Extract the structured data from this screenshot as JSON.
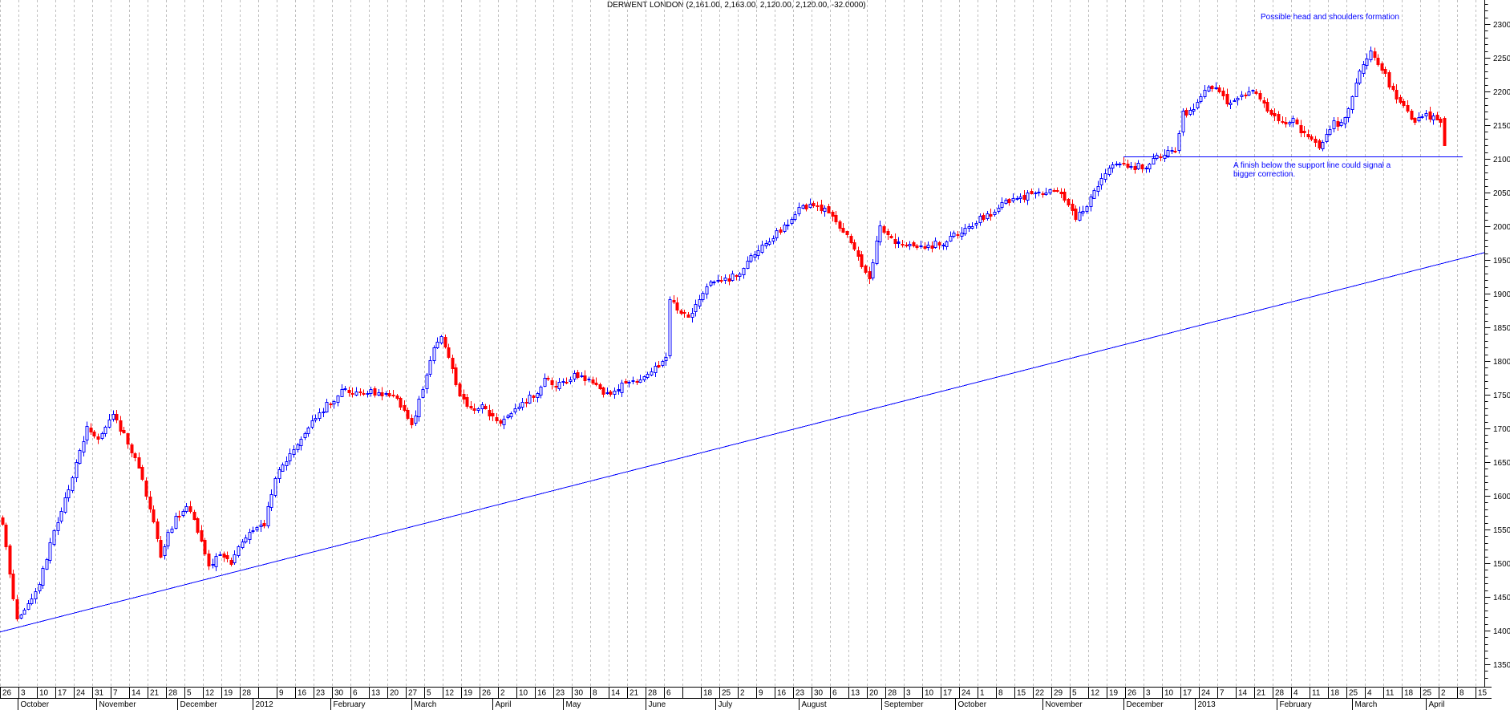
{
  "chart_data": {
    "type": "candlestick",
    "title": "DERWENT LONDON (2,161.00, 2,163.00, 2,120.00, 2,120.00, -32.0000)",
    "instrument": "DERWENT LONDON",
    "quote": {
      "open": "2,161.00",
      "high": "2,163.00",
      "low": "2,120.00",
      "close": "2,120.00",
      "change": "-32.0000"
    },
    "y_axis": {
      "side": "right",
      "minor_step": 10,
      "major_step": 50,
      "label_min": 1350,
      "label_max": 2300,
      "labels": [
        2300,
        2250,
        2200,
        2150,
        2100,
        2050,
        2000,
        1950,
        1900,
        1850,
        1800,
        1750,
        1700,
        1650,
        1600,
        1550,
        1500,
        1450,
        1400,
        1350
      ]
    },
    "x_axis": {
      "week_labels": [
        "26",
        "3",
        "10",
        "17",
        "24",
        "31",
        "7",
        "14",
        "21",
        "28",
        "5",
        "12",
        "19",
        "28",
        "",
        "9",
        "16",
        "23",
        "30",
        "6",
        "13",
        "20",
        "27",
        "5",
        "12",
        "19",
        "26",
        "2",
        "10",
        "16",
        "23",
        "30",
        "8",
        "14",
        "21",
        "28",
        "6",
        "",
        "18",
        "25",
        "2",
        "9",
        "16",
        "23",
        "30",
        "6",
        "13",
        "20",
        "28",
        "3",
        "10",
        "17",
        "24",
        "1",
        "8",
        "15",
        "22",
        "29",
        "5",
        "12",
        "19",
        "26",
        "3",
        "10",
        "17",
        "24",
        "7",
        "14",
        "21",
        "28",
        "4",
        "11",
        "18",
        "25",
        "4",
        "11",
        "18",
        "25",
        "2",
        "8",
        "15"
      ],
      "months": [
        {
          "label": "October",
          "week": 0.96
        },
        {
          "label": "November",
          "week": 5.2
        },
        {
          "label": "December",
          "week": 9.6
        },
        {
          "label": "2012",
          "week": 13.7
        },
        {
          "label": "February",
          "week": 17.9
        },
        {
          "label": "March",
          "week": 22.3
        },
        {
          "label": "April",
          "week": 26.7
        },
        {
          "label": "May",
          "week": 30.5
        },
        {
          "label": "June",
          "week": 35.0
        },
        {
          "label": "July",
          "week": 38.8
        },
        {
          "label": "August",
          "week": 43.3
        },
        {
          "label": "September",
          "week": 47.8
        },
        {
          "label": "October",
          "week": 51.8
        },
        {
          "label": "November",
          "week": 56.5
        },
        {
          "label": "December",
          "week": 60.9
        },
        {
          "label": "2013",
          "week": 64.8
        },
        {
          "label": "February",
          "week": 69.2
        },
        {
          "label": "March",
          "week": 73.3
        },
        {
          "label": "April",
          "week": 77.3
        }
      ]
    },
    "annotations": [
      {
        "id": "head-shoulders",
        "text": "Possible head and shoulders formation",
        "color": "#0000ff"
      },
      {
        "id": "support-note",
        "text": "A finish below the support line could signal a bigger correction.",
        "color": "#0000ff"
      }
    ],
    "lines": {
      "trend_line": {
        "style": "solid",
        "color": "#0000ff",
        "day_start": -0.5,
        "price_start": 1398,
        "day_end": 402,
        "price_end": 1961
      },
      "support_line": {
        "style": "solid",
        "color": "#0000ff",
        "price": 2104,
        "day_start": 304,
        "day_end": 396
      }
    },
    "candles": {
      "count": 392,
      "last_candle": {
        "open": 2161,
        "high": 2163,
        "low": 2120,
        "close": 2120
      },
      "close_keyframes": [
        [
          0,
          1556
        ],
        [
          2,
          1490
        ],
        [
          4,
          1415
        ],
        [
          7,
          1440
        ],
        [
          10,
          1470
        ],
        [
          14,
          1545
        ],
        [
          18,
          1608
        ],
        [
          23,
          1700
        ],
        [
          26,
          1680
        ],
        [
          30,
          1722
        ],
        [
          33,
          1690
        ],
        [
          36,
          1660
        ],
        [
          40,
          1580
        ],
        [
          43,
          1510
        ],
        [
          47,
          1570
        ],
        [
          50,
          1585
        ],
        [
          53,
          1550
        ],
        [
          56,
          1495
        ],
        [
          59,
          1510
        ],
        [
          62,
          1500
        ],
        [
          65,
          1530
        ],
        [
          68,
          1550
        ],
        [
          71,
          1555
        ],
        [
          74,
          1625
        ],
        [
          78,
          1660
        ],
        [
          81,
          1680
        ],
        [
          84,
          1710
        ],
        [
          88,
          1735
        ],
        [
          92,
          1756
        ],
        [
          96,
          1750
        ],
        [
          100,
          1752
        ],
        [
          104,
          1755
        ],
        [
          108,
          1735
        ],
        [
          111,
          1705
        ],
        [
          114,
          1755
        ],
        [
          117,
          1820
        ],
        [
          119,
          1832
        ],
        [
          121,
          1805
        ],
        [
          124,
          1748
        ],
        [
          127,
          1725
        ],
        [
          130,
          1730
        ],
        [
          133,
          1715
        ],
        [
          135,
          1705
        ],
        [
          138,
          1722
        ],
        [
          141,
          1738
        ],
        [
          144,
          1750
        ],
        [
          147,
          1772
        ],
        [
          150,
          1760
        ],
        [
          153,
          1770
        ],
        [
          156,
          1780
        ],
        [
          159,
          1775
        ],
        [
          162,
          1755
        ],
        [
          165,
          1750
        ],
        [
          168,
          1762
        ],
        [
          171,
          1768
        ],
        [
          174,
          1772
        ],
        [
          177,
          1790
        ],
        [
          180,
          1802
        ],
        [
          181,
          1890
        ],
        [
          183,
          1875
        ],
        [
          186,
          1862
        ],
        [
          189,
          1890
        ],
        [
          192,
          1915
        ],
        [
          195,
          1920
        ],
        [
          198,
          1925
        ],
        [
          201,
          1940
        ],
        [
          204,
          1958
        ],
        [
          207,
          1972
        ],
        [
          210,
          1988
        ],
        [
          213,
          2008
        ],
        [
          216,
          2024
        ],
        [
          219,
          2032
        ],
        [
          222,
          2026
        ],
        [
          225,
          2012
        ],
        [
          228,
          1990
        ],
        [
          231,
          1965
        ],
        [
          234,
          1930
        ],
        [
          235,
          1918
        ],
        [
          238,
          2000
        ],
        [
          240,
          1982
        ],
        [
          243,
          1972
        ],
        [
          246,
          1970
        ],
        [
          249,
          1968
        ],
        [
          252,
          1972
        ],
        [
          255,
          1978
        ],
        [
          258,
          1985
        ],
        [
          261,
          1992
        ],
        [
          264,
          2005
        ],
        [
          267,
          2018
        ],
        [
          270,
          2028
        ],
        [
          273,
          2038
        ],
        [
          276,
          2042
        ],
        [
          280,
          2046
        ],
        [
          283,
          2048
        ],
        [
          286,
          2052
        ],
        [
          288,
          2040
        ],
        [
          291,
          2010
        ],
        [
          294,
          2028
        ],
        [
          297,
          2060
        ],
        [
          300,
          2085
        ],
        [
          303,
          2092
        ],
        [
          306,
          2088
        ],
        [
          309,
          2090
        ],
        [
          312,
          2098
        ],
        [
          315,
          2105
        ],
        [
          318,
          2112
        ],
        [
          320,
          2165
        ],
        [
          322,
          2172
        ],
        [
          324,
          2188
        ],
        [
          326,
          2198
        ],
        [
          328,
          2207
        ],
        [
          330,
          2200
        ],
        [
          333,
          2178
        ],
        [
          336,
          2192
        ],
        [
          338,
          2198
        ],
        [
          340,
          2195
        ],
        [
          342,
          2180
        ],
        [
          344,
          2165
        ],
        [
          347,
          2150
        ],
        [
          350,
          2155
        ],
        [
          352,
          2140
        ],
        [
          355,
          2128
        ],
        [
          357,
          2114
        ],
        [
          359,
          2135
        ],
        [
          361,
          2155
        ],
        [
          363,
          2150
        ],
        [
          365,
          2180
        ],
        [
          367,
          2210
        ],
        [
          369,
          2240
        ],
        [
          371,
          2255
        ],
        [
          372,
          2248
        ],
        [
          374,
          2232
        ],
        [
          376,
          2210
        ],
        [
          378,
          2195
        ],
        [
          380,
          2180
        ],
        [
          382,
          2155
        ],
        [
          384,
          2160
        ],
        [
          386,
          2166
        ],
        [
          388,
          2158
        ],
        [
          390,
          2152
        ],
        [
          391,
          2120
        ]
      ],
      "noise": {
        "seed": 9,
        "body": 12,
        "gap": 5,
        "wick": 7
      }
    },
    "colors": {
      "up": "#0000ff",
      "down": "#ff0000",
      "grid": "#bfbfbf",
      "axis": "#000000",
      "text": "#000000",
      "annotation": "#0000ff"
    }
  }
}
